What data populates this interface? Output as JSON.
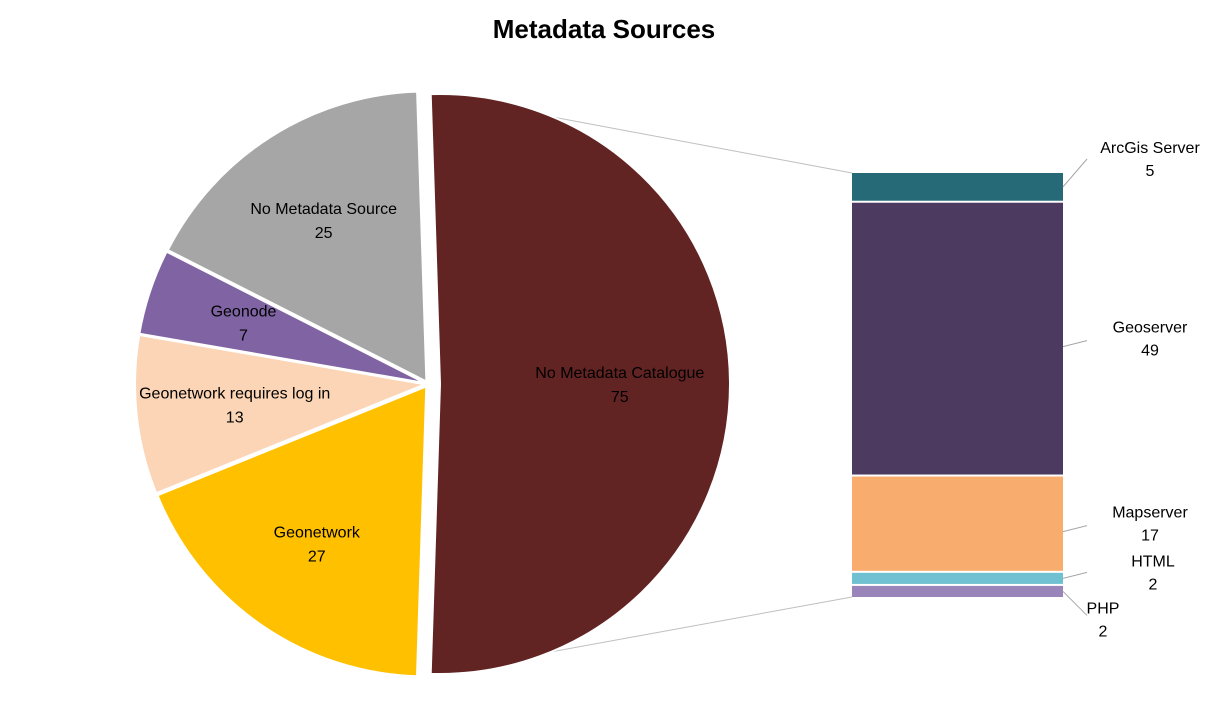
{
  "chart_data": {
    "type": "pie",
    "subtype": "bar-of-pie",
    "title": "Metadata Sources",
    "slices": [
      {
        "label": "No Metadata Catalogue",
        "value": 75,
        "color": "#622323",
        "text_color": "#000000"
      },
      {
        "label": "Geonetwork",
        "value": 27,
        "color": "#FFC000",
        "text_color": "#000000"
      },
      {
        "label": "Geonetwork requires log in",
        "value": 13,
        "color": "#FBD5B5",
        "text_color": "#000000"
      },
      {
        "label": "Geonode",
        "value": 7,
        "color": "#7F63A3",
        "text_color": "#000000"
      },
      {
        "label": "No Metadata Source",
        "value": 25,
        "color": "#A6A6A6",
        "text_color": "#000000"
      }
    ],
    "breakout": {
      "of_slice": "No Metadata Catalogue",
      "segments": [
        {
          "label": "ArcGis Server",
          "value": 5,
          "color": "#266A78"
        },
        {
          "label": "Geoserver",
          "value": 49,
          "color": "#4D3A60"
        },
        {
          "label": "Mapserver",
          "value": 17,
          "color": "#F8AD6E"
        },
        {
          "label": "HTML",
          "value": 2,
          "color": "#6FC0D0"
        },
        {
          "label": "PHP",
          "value": 2,
          "color": "#9A85BB"
        }
      ]
    },
    "legend": "none"
  }
}
